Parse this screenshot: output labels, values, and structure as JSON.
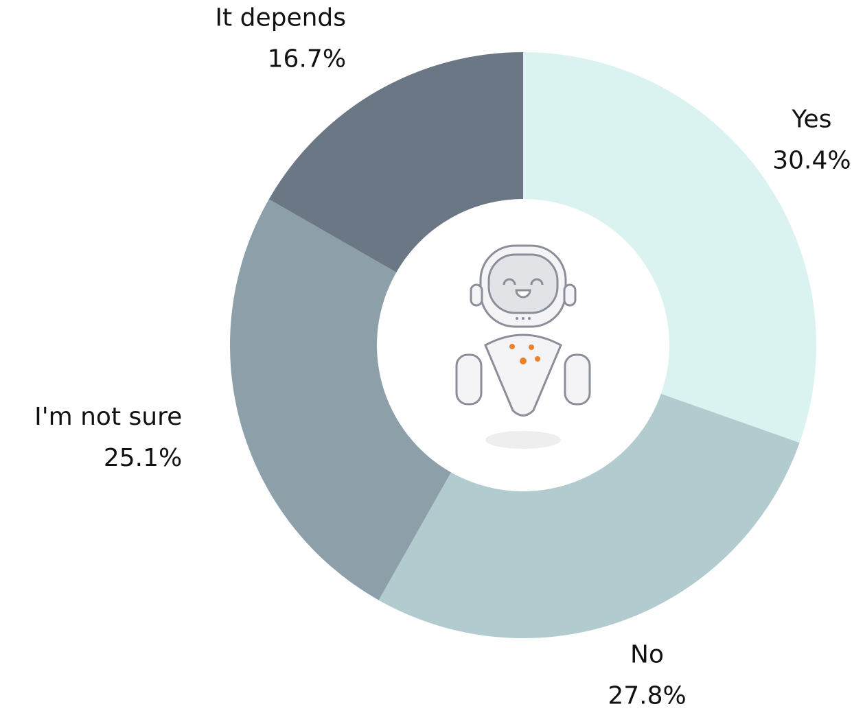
{
  "chart_data": {
    "type": "donut",
    "categories": [
      "Yes",
      "No",
      "I'm not sure",
      "It depends"
    ],
    "values": [
      30.4,
      27.8,
      25.1,
      16.7
    ],
    "value_labels": [
      "30.4%",
      "27.8%",
      "25.1%",
      "16.7%"
    ],
    "colors": [
      "#daf3f1",
      "#b1cbcf",
      "#8da0a9",
      "#6b7785"
    ]
  }
}
